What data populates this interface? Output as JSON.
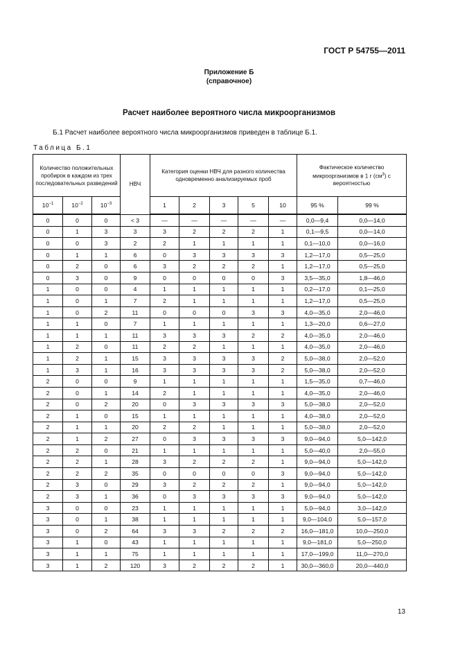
{
  "header": {
    "doc_code": "ГОСТ Р 54755—2011"
  },
  "annex": {
    "title": "Приложение Б",
    "subtitle": "(справочное)"
  },
  "section_title": "Расчет наиболее вероятного числа микроорганизмов",
  "intro": "Б.1  Расчет наиболее вероятного числа микроорганизмов приведен в таблице Б.1.",
  "table_caption": "Таблица Б.1",
  "table": {
    "head": {
      "positive_tubes": "Количество положительных пробирок в каждом из трех последовательных разведений",
      "mpn": "НВЧ",
      "category": "Категория оценки НВЧ для разного количества одновременно анализируемых проб",
      "actual_count_pre": "Фактическое количество микроорганизмов в 1 г (см",
      "actual_count_sup": "3",
      "actual_count_post": ") с вероятностью",
      "dilutions": [
        "10",
        "10",
        "10"
      ],
      "dilution_exps": [
        "−1",
        "−2",
        "−3"
      ],
      "sample_counts": [
        "1",
        "2",
        "3",
        "5",
        "10"
      ],
      "probabilities": [
        "95 %",
        "99 %"
      ]
    },
    "rows": [
      [
        "0",
        "0",
        "0",
        "< 3",
        "—",
        "—",
        "—",
        "—",
        "—",
        "0,0—9,4",
        "0,0—14,0"
      ],
      [
        "0",
        "1",
        "3",
        "3",
        "3",
        "2",
        "2",
        "2",
        "1",
        "0,1—9,5",
        "0,0—14,0"
      ],
      [
        "0",
        "0",
        "3",
        "2",
        "2",
        "1",
        "1",
        "1",
        "1",
        "0,1—10,0",
        "0,0—16,0"
      ],
      [
        "0",
        "1",
        "1",
        "6",
        "0",
        "3",
        "3",
        "3",
        "3",
        "1,2—17,0",
        "0,5—25,0"
      ],
      [
        "0",
        "2",
        "0",
        "6",
        "3",
        "2",
        "2",
        "2",
        "1",
        "1,2—17,0",
        "0,5—25,0"
      ],
      [
        "0",
        "3",
        "0",
        "9",
        "0",
        "0",
        "0",
        "0",
        "3",
        "3,5—35,0",
        "1,8—46,0"
      ],
      [
        "1",
        "0",
        "0",
        "4",
        "1",
        "1",
        "1",
        "1",
        "1",
        "0,2—17,0",
        "0,1—25,0"
      ],
      [
        "1",
        "0",
        "1",
        "7",
        "2",
        "1",
        "1",
        "1",
        "1",
        "1,2—17,0",
        "0,5—25,0"
      ],
      [
        "1",
        "0",
        "2",
        "11",
        "0",
        "0",
        "0",
        "3",
        "3",
        "4,0—35,0",
        "2,0—46,0"
      ],
      [
        "1",
        "1",
        "0",
        "7",
        "1",
        "1",
        "1",
        "1",
        "1",
        "1,3—20,0",
        "0,6—27,0"
      ],
      [
        "1",
        "1",
        "1",
        "11",
        "3",
        "3",
        "3",
        "2",
        "2",
        "4,0—35,0",
        "2,0—46,0"
      ],
      [
        "1",
        "2",
        "0",
        "11",
        "2",
        "2",
        "1",
        "1",
        "1",
        "4,0—35,0",
        "2,0—46,0"
      ],
      [
        "1",
        "2",
        "1",
        "15",
        "3",
        "3",
        "3",
        "3",
        "2",
        "5,0—38,0",
        "2,0—52,0"
      ],
      [
        "1",
        "3",
        "1",
        "16",
        "3",
        "3",
        "3",
        "3",
        "2",
        "5,0—38,0",
        "2,0—52,0"
      ],
      [
        "2",
        "0",
        "0",
        "9",
        "1",
        "1",
        "1",
        "1",
        "1",
        "1,5—35,0",
        "0,7—46,0"
      ],
      [
        "2",
        "0",
        "1",
        "14",
        "2",
        "1",
        "1",
        "1",
        "1",
        "4,0—35,0",
        "2,0—46,0"
      ],
      [
        "2",
        "0",
        "2",
        "20",
        "0",
        "3",
        "3",
        "3",
        "3",
        "5,0—38,0",
        "2,0—52,0"
      ],
      [
        "2",
        "1",
        "0",
        "15",
        "1",
        "1",
        "1",
        "1",
        "1",
        "4,0—38,0",
        "2,0—52,0"
      ],
      [
        "2",
        "1",
        "1",
        "20",
        "2",
        "2",
        "1",
        "1",
        "1",
        "5,0—38,0",
        "2,0—52,0"
      ],
      [
        "2",
        "1",
        "2",
        "27",
        "0",
        "3",
        "3",
        "3",
        "3",
        "9,0—94,0",
        "5,0—142,0"
      ],
      [
        "2",
        "2",
        "0",
        "21",
        "1",
        "1",
        "1",
        "1",
        "1",
        "5,0—40,0",
        "2,0—55,0"
      ],
      [
        "2",
        "2",
        "1",
        "28",
        "3",
        "2",
        "2",
        "2",
        "1",
        "9,0—94,0",
        "5,0—142,0"
      ],
      [
        "2",
        "2",
        "2",
        "35",
        "0",
        "0",
        "0",
        "0",
        "3",
        "9,0—94,0",
        "5,0—142,0"
      ],
      [
        "2",
        "3",
        "0",
        "29",
        "3",
        "2",
        "2",
        "2",
        "1",
        "9,0—94,0",
        "5,0—142,0"
      ],
      [
        "2",
        "3",
        "1",
        "36",
        "0",
        "3",
        "3",
        "3",
        "3",
        "9,0—94,0",
        "5,0—142,0"
      ],
      [
        "3",
        "0",
        "0",
        "23",
        "1",
        "1",
        "1",
        "1",
        "1",
        "5,0—94,0",
        "3,0—142,0"
      ],
      [
        "3",
        "0",
        "1",
        "38",
        "1",
        "1",
        "1",
        "1",
        "1",
        "9,0—104,0",
        "5,0—157,0"
      ],
      [
        "3",
        "0",
        "2",
        "64",
        "3",
        "3",
        "2",
        "2",
        "2",
        "16,0—181,0",
        "10,0—250,0"
      ],
      [
        "3",
        "1",
        "0",
        "43",
        "1",
        "1",
        "1",
        "1",
        "1",
        "9,0—181,0",
        "5,0—250,0"
      ],
      [
        "3",
        "1",
        "1",
        "75",
        "1",
        "1",
        "1",
        "1",
        "1",
        "17,0—199,0",
        "11,0—270,0"
      ],
      [
        "3",
        "1",
        "2",
        "120",
        "3",
        "2",
        "2",
        "2",
        "1",
        "30,0—360,0",
        "20,0—440,0"
      ]
    ]
  },
  "footer": {
    "page_number": "13"
  }
}
